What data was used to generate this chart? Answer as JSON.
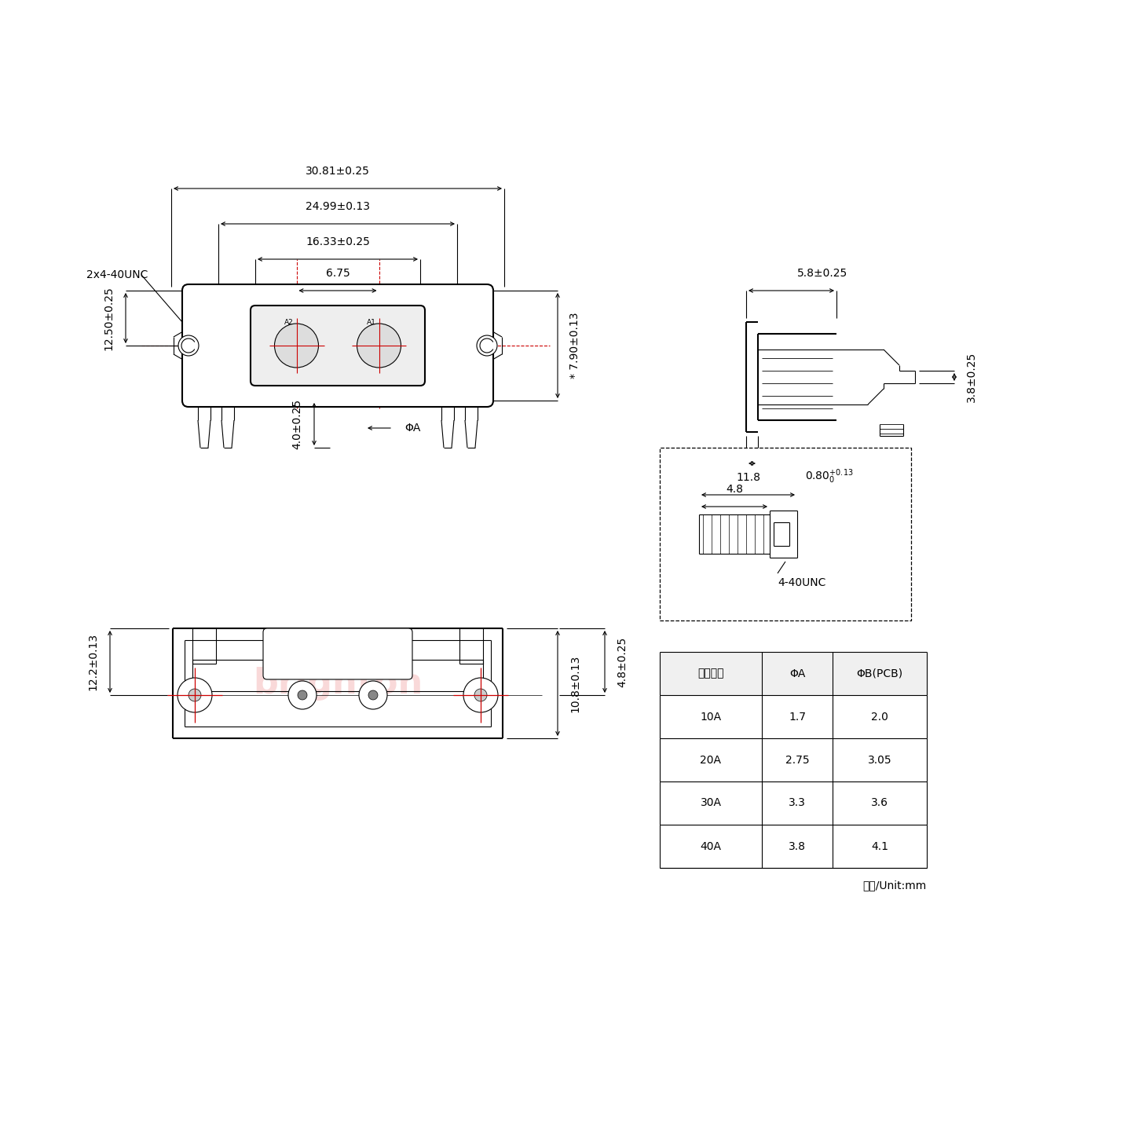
{
  "bg_color": "#ffffff",
  "line_color": "#000000",
  "red_color": "#cc0000",
  "watermark_color": "#f5c0c0",
  "dim_font_size": 10,
  "small_font_size": 8,
  "table_font_size": 10,
  "dimensions": {
    "width_30_81": "30.81±0.25",
    "width_24_99": "24.99±0.13",
    "width_16_33": "16.33±0.25",
    "width_6_75": "6.75",
    "height_7_90": "* 7.90±0.13",
    "height_12_50": "12.50±0.25",
    "height_4_0": "4.0±0.25",
    "dim_phiA": "ΦA",
    "dim_5_8": "5.8±0.25",
    "dim_3_8": "3.8±0.25",
    "dim_0_80": "0.80",
    "dim_4_8": "4.8±0.25",
    "dim_10_8": "10.8±0.13",
    "dim_11_8": "11.8",
    "dim_4_8_screw": "4.8",
    "dim_12_2": "12.2±0.13",
    "label_2x4": "2x4-40UNC",
    "label_4_40": "4-40UNC"
  },
  "table": {
    "headers": [
      "额定电流",
      "ΦA",
      "ΦB(PCB)"
    ],
    "rows": [
      [
        "10A",
        "1.7",
        "2.0"
      ],
      [
        "20A",
        "2.75",
        "3.05"
      ],
      [
        "30A",
        "3.3",
        "3.6"
      ],
      [
        "40A",
        "3.8",
        "4.1"
      ]
    ],
    "footer": "单位/Unit:mm"
  }
}
